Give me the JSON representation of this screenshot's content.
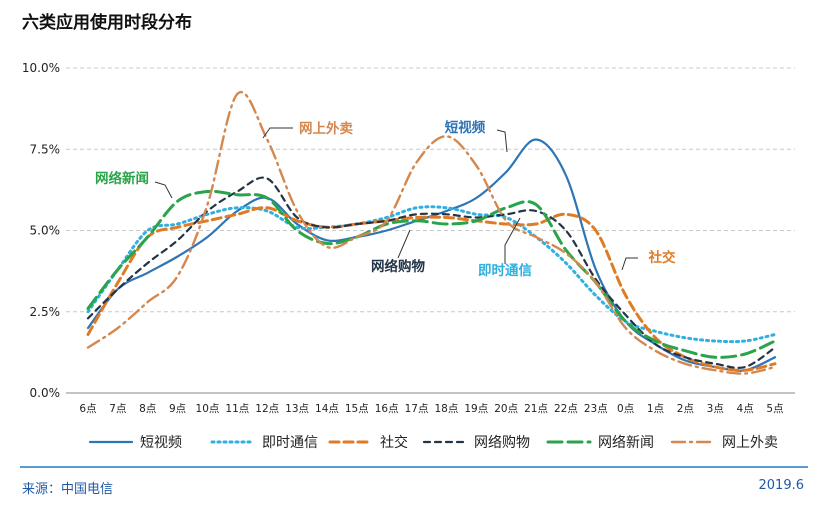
{
  "page": {
    "title": "六类应用使用时段分布",
    "source": "来源：中国电信",
    "date": "2019.6"
  },
  "chart_data": {
    "type": "line",
    "title": "六类应用使用时段分布",
    "categories": [
      "6点",
      "7点",
      "8点",
      "9点",
      "10点",
      "11点",
      "12点",
      "13点",
      "14点",
      "15点",
      "16点",
      "17点",
      "18点",
      "19点",
      "20点",
      "21点",
      "22点",
      "23点",
      "0点",
      "1点",
      "2点",
      "3点",
      "4点",
      "5点"
    ],
    "y_ticks": [
      "0.0%",
      "2.5%",
      "5.0%",
      "7.5%",
      "10.0%"
    ],
    "ylim": [
      0,
      10
    ],
    "grid": true,
    "legend_position": "bottom",
    "series": [
      {
        "name": "短视频",
        "color": "#2e75b6",
        "dash": "",
        "values": [
          2.0,
          3.2,
          3.7,
          4.2,
          4.8,
          5.6,
          6.0,
          5.2,
          4.7,
          4.8,
          5.0,
          5.3,
          5.6,
          6.0,
          6.8,
          7.8,
          6.7,
          3.8,
          2.2,
          1.5,
          1.0,
          0.8,
          0.7,
          1.1
        ],
        "callout": "短视频"
      },
      {
        "name": "即时通信",
        "color": "#2fb0e0",
        "dash": "2 4",
        "values": [
          2.5,
          3.8,
          5.0,
          5.2,
          5.5,
          5.7,
          5.6,
          5.1,
          5.1,
          5.2,
          5.4,
          5.7,
          5.7,
          5.5,
          5.4,
          4.8,
          4.0,
          3.0,
          2.2,
          1.9,
          1.7,
          1.6,
          1.6,
          1.8
        ],
        "callout": "即时通信"
      },
      {
        "name": "社交",
        "color": "#e07b25",
        "dash": "9 5",
        "values": [
          1.8,
          3.4,
          4.8,
          5.1,
          5.3,
          5.5,
          5.7,
          5.3,
          5.1,
          5.2,
          5.3,
          5.4,
          5.4,
          5.3,
          5.2,
          5.2,
          5.5,
          5.0,
          3.0,
          1.7,
          1.1,
          0.8,
          0.7,
          0.9
        ],
        "callout": "社交"
      },
      {
        "name": "网络购物",
        "color": "#243447",
        "dash": "6 5",
        "values": [
          2.3,
          3.2,
          4.0,
          4.7,
          5.6,
          6.2,
          6.6,
          5.4,
          5.1,
          5.2,
          5.3,
          5.5,
          5.5,
          5.4,
          5.5,
          5.6,
          5.0,
          3.5,
          2.4,
          1.5,
          1.1,
          0.9,
          0.8,
          1.4
        ],
        "callout": "网络购物"
      },
      {
        "name": "网络新闻",
        "color": "#2aa44a",
        "dash": "14 6",
        "values": [
          2.6,
          3.8,
          4.8,
          5.9,
          6.2,
          6.1,
          6.0,
          5.0,
          4.6,
          4.8,
          5.2,
          5.3,
          5.2,
          5.3,
          5.7,
          5.8,
          4.4,
          3.4,
          2.2,
          1.6,
          1.3,
          1.1,
          1.2,
          1.6
        ],
        "callout": "网络新闻"
      },
      {
        "name": "网上外卖",
        "color": "#d4874f",
        "dash": "13 5 2 5",
        "values": [
          1.4,
          2.0,
          2.8,
          3.6,
          5.8,
          9.2,
          7.8,
          5.6,
          4.5,
          4.8,
          5.3,
          7.1,
          7.9,
          7.0,
          5.3,
          4.8,
          4.3,
          3.4,
          2.0,
          1.3,
          0.9,
          0.7,
          0.6,
          0.8
        ],
        "callout": "网上外卖"
      }
    ]
  }
}
